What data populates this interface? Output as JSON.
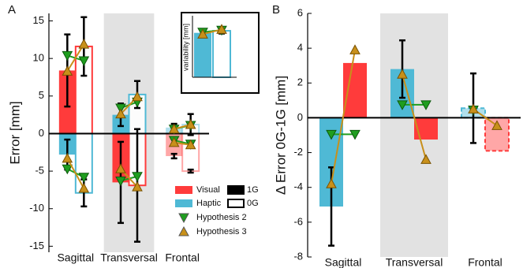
{
  "chart_data": [
    {
      "type": "bar",
      "panel_label": "A",
      "ylabel": "Error [mm]",
      "categories": [
        "Sagittal",
        "Transversal",
        "Frontal"
      ],
      "ylim": [
        -15.8,
        16
      ],
      "yticks": [
        -15,
        -10,
        -5,
        0,
        5,
        10,
        15
      ],
      "conditions": [
        "1G",
        "0G"
      ],
      "series": [
        {
          "name": "Visual",
          "color": "#ff3b3b",
          "values": [
            [
              8.4,
              11.6
            ],
            [
              -6.5,
              -6.9
            ],
            [
              -3,
              -5
            ]
          ],
          "errors": [
            [
              4.8,
              3.9
            ],
            [
              5.4,
              7.5
            ],
            [
              0.3,
              0.2
            ]
          ]
        },
        {
          "name": "Haptic",
          "color": "#4fb9d5",
          "values": [
            [
              -2.8,
              -7.9
            ],
            [
              2.5,
              5.2
            ],
            [
              0.8,
              1.2
            ]
          ],
          "errors": [
            [
              2,
              1.8
            ],
            [
              1.5,
              1.8
            ],
            [
              0.5,
              1.4
            ]
          ]
        }
      ],
      "hypotheses": [
        {
          "name": "Hypothesis 2",
          "color": "#1f9e1f",
          "marker": "down",
          "values": [
            [
              [
                10.4,
                9.7
              ],
              [
                -4.7,
                -5.8
              ]
            ],
            [
              [
                -6.3,
                -5.7
              ],
              [
                3.4,
                4.2
              ]
            ],
            [
              [
                -0.9,
                -1.4
              ],
              [
                0.6,
                1.1
              ]
            ]
          ]
        },
        {
          "name": "Hypothesis 3",
          "color": "#c8901a",
          "marker": "up",
          "values": [
            [
              [
                8.3,
                11.9
              ],
              [
                -3.3,
                -7.3
              ]
            ],
            [
              [
                -4.7,
                -7.1
              ],
              [
                2.6,
                4.9
              ]
            ],
            [
              [
                -1.2,
                -1.5
              ],
              [
                0.6,
                1.2
              ]
            ]
          ]
        }
      ],
      "inset": {
        "ylabel": "variability [mm]",
        "ylim": [
          0,
          9
        ],
        "color": "#4fb9d5",
        "values": [
          6.5,
          6.8
        ],
        "errors": [
          0.5,
          0.4
        ],
        "hypotheses": [
          [
            6.6,
            6.9
          ],
          [
            6.3,
            7.0
          ]
        ]
      }
    },
    {
      "type": "bar",
      "panel_label": "B",
      "ylabel": "Δ Error 0G-1G [mm]",
      "categories": [
        "Sagittal",
        "Transversal",
        "Frontal"
      ],
      "ylim": [
        -8,
        6
      ],
      "yticks": [
        -8,
        -6,
        -4,
        -2,
        0,
        2,
        4,
        6
      ],
      "series": [
        {
          "color": "#4fb9d5",
          "values": [
            -5.1,
            2.8,
            0.55
          ],
          "errors": [
            2.25,
            1.65,
            2
          ]
        },
        {
          "color": "#ff3b3b",
          "values": [
            3.15,
            -1.25,
            -1.9
          ]
        }
      ],
      "hypotheses": [
        {
          "color": "#1f9e1f",
          "marker": "down",
          "values": [
            [
              -0.95,
              -0.95
            ],
            [
              0.75,
              0.75
            ],
            [
              0.45,
              null
            ]
          ]
        },
        {
          "color": "#c8901a",
          "marker": "up",
          "values": [
            [
              -3.8,
              3.9
            ],
            [
              2.5,
              -2.4
            ],
            [
              0.5,
              -0.45
            ]
          ]
        }
      ]
    }
  ]
}
